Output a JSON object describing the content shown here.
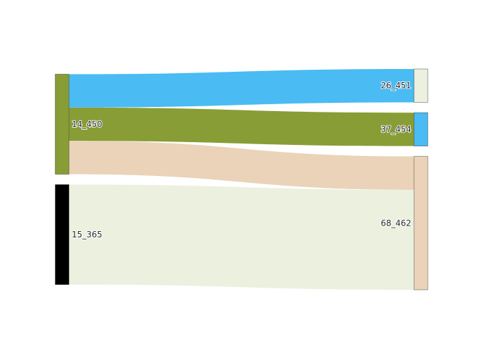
{
  "chart_data": {
    "type": "sankey",
    "nodes": [
      {
        "id": "14_450",
        "label": "14_450",
        "color": "#889d35",
        "column": "left"
      },
      {
        "id": "15_365",
        "label": "15_365",
        "color": "#000000",
        "column": "left"
      },
      {
        "id": "26_451",
        "label": "26_451",
        "color": "#ecf0df",
        "column": "right"
      },
      {
        "id": "37_454",
        "label": "37_454",
        "color": "#4abbf3",
        "column": "right"
      },
      {
        "id": "68_462",
        "label": "68_462",
        "color": "#ead3b8",
        "column": "right"
      }
    ],
    "links": [
      {
        "source": "14_450",
        "target": "26_451",
        "value": 1,
        "color": "#4abbf3"
      },
      {
        "source": "14_450",
        "target": "37_454",
        "value": 1,
        "color": "#889d35"
      },
      {
        "source": "14_450",
        "target": "68_462",
        "value": 1,
        "color": "#ead3b8"
      },
      {
        "source": "15_365",
        "target": "68_462",
        "value": 3,
        "color": "#ecf0df"
      }
    ]
  }
}
